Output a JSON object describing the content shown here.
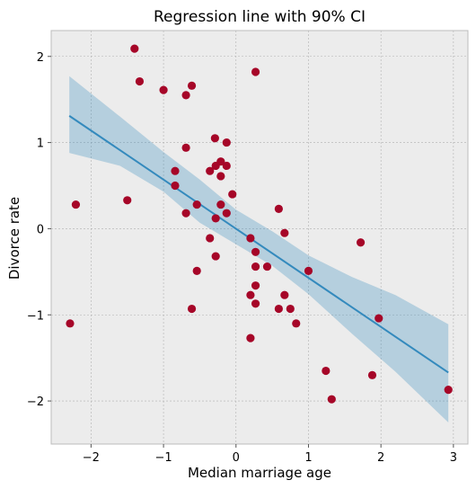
{
  "chart_data": {
    "type": "scatter",
    "title": "Regression line with 90% CI",
    "xlabel": "Median marriage age",
    "ylabel": "Divorce rate",
    "xlim": [
      -2.55,
      3.2
    ],
    "ylim": [
      -2.5,
      2.3
    ],
    "xticks": [
      -2,
      -1,
      0,
      1,
      2,
      3
    ],
    "yticks": [
      -2,
      -1,
      0,
      1,
      2
    ],
    "xtick_labels": [
      "−2",
      "−1",
      "0",
      "1",
      "2",
      "3"
    ],
    "ytick_labels": [
      "−2",
      "−1",
      "0",
      "1",
      "2"
    ],
    "grid": true,
    "colors": {
      "background": "#ececec",
      "grid": "#b0b0b0",
      "points": "#a60628",
      "line": "#348abd",
      "band": "#348abd",
      "frame": "#bcbcbc"
    },
    "points": [
      {
        "x": -1.4,
        "y": 2.09
      },
      {
        "x": -1.33,
        "y": 1.71
      },
      {
        "x": -1.0,
        "y": 1.61
      },
      {
        "x": -0.69,
        "y": 1.55
      },
      {
        "x": -0.61,
        "y": 1.66
      },
      {
        "x": 0.27,
        "y": 1.82
      },
      {
        "x": -0.29,
        "y": 1.05
      },
      {
        "x": -0.13,
        "y": 1.0
      },
      {
        "x": -0.69,
        "y": 0.94
      },
      {
        "x": -0.84,
        "y": 0.67
      },
      {
        "x": -0.36,
        "y": 0.67
      },
      {
        "x": -0.21,
        "y": 0.78
      },
      {
        "x": -0.28,
        "y": 0.73
      },
      {
        "x": -0.13,
        "y": 0.73
      },
      {
        "x": -0.21,
        "y": 0.61
      },
      {
        "x": -0.84,
        "y": 0.5
      },
      {
        "x": -0.05,
        "y": 0.4
      },
      {
        "x": -1.5,
        "y": 0.33
      },
      {
        "x": -2.21,
        "y": 0.28
      },
      {
        "x": -0.54,
        "y": 0.28
      },
      {
        "x": -0.21,
        "y": 0.28
      },
      {
        "x": -0.69,
        "y": 0.18
      },
      {
        "x": -0.13,
        "y": 0.18
      },
      {
        "x": -0.28,
        "y": 0.12
      },
      {
        "x": 0.59,
        "y": 0.23
      },
      {
        "x": 0.67,
        "y": -0.05
      },
      {
        "x": -0.36,
        "y": -0.11
      },
      {
        "x": 0.2,
        "y": -0.11
      },
      {
        "x": 1.72,
        "y": -0.16
      },
      {
        "x": 0.27,
        "y": -0.27
      },
      {
        "x": -0.28,
        "y": -0.32
      },
      {
        "x": 0.27,
        "y": -0.44
      },
      {
        "x": 0.43,
        "y": -0.44
      },
      {
        "x": -0.54,
        "y": -0.49
      },
      {
        "x": 1.0,
        "y": -0.49
      },
      {
        "x": 0.27,
        "y": -0.66
      },
      {
        "x": 0.2,
        "y": -0.77
      },
      {
        "x": 0.67,
        "y": -0.77
      },
      {
        "x": 0.27,
        "y": -0.87
      },
      {
        "x": -0.61,
        "y": -0.93
      },
      {
        "x": 0.59,
        "y": -0.93
      },
      {
        "x": 0.75,
        "y": -0.93
      },
      {
        "x": 1.97,
        "y": -1.04
      },
      {
        "x": -2.29,
        "y": -1.1
      },
      {
        "x": 0.83,
        "y": -1.1
      },
      {
        "x": 0.2,
        "y": -1.27
      },
      {
        "x": 1.24,
        "y": -1.65
      },
      {
        "x": 1.88,
        "y": -1.7
      },
      {
        "x": 1.32,
        "y": -1.98
      },
      {
        "x": 2.93,
        "y": -1.87
      }
    ],
    "regression_line": {
      "x": [
        -2.3,
        2.93
      ],
      "y": [
        1.31,
        -1.67
      ]
    },
    "ci_band": {
      "x": [
        -2.3,
        -1.6,
        -1.0,
        -0.5,
        0.0,
        0.5,
        1.0,
        1.6,
        2.2,
        2.93
      ],
      "upper": [
        1.77,
        1.3,
        0.89,
        0.57,
        0.22,
        -0.03,
        -0.31,
        -0.56,
        -0.77,
        -1.11
      ],
      "lower": [
        0.88,
        0.73,
        0.43,
        0.07,
        -0.18,
        -0.43,
        -0.76,
        -1.22,
        -1.66,
        -2.25
      ]
    }
  }
}
